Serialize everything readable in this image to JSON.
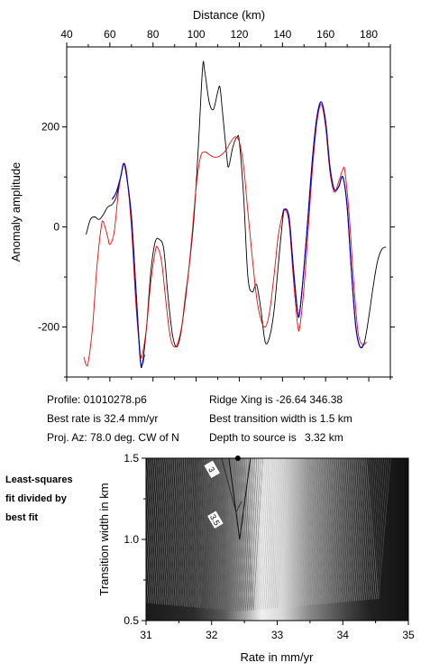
{
  "chart_data": [
    {
      "type": "line",
      "xlabel": "Distance (km)",
      "ylabel": "Anomaly amplitude",
      "xlim": [
        40,
        190
      ],
      "ylim": [
        -300,
        360
      ],
      "xticks": [
        40,
        60,
        80,
        100,
        120,
        140,
        160,
        180
      ],
      "yticks": [
        -200,
        0,
        200
      ],
      "grid": false,
      "series": [
        {
          "color": "#000000",
          "points": [
            [
              49,
              -15
            ],
            [
              51,
              15
            ],
            [
              53,
              20
            ],
            [
              55,
              15
            ],
            [
              57,
              25
            ],
            [
              59,
              40
            ],
            [
              61,
              45
            ],
            [
              63,
              60
            ],
            [
              65,
              100
            ],
            [
              66.5,
              127
            ],
            [
              68,
              95
            ],
            [
              70,
              20
            ],
            [
              72,
              -120
            ],
            [
              74,
              -260
            ],
            [
              75,
              -275
            ],
            [
              77,
              -200
            ],
            [
              79,
              -90
            ],
            [
              81,
              -30
            ],
            [
              83,
              -25
            ],
            [
              85,
              -45
            ],
            [
              87,
              -140
            ],
            [
              89,
              -215
            ],
            [
              91,
              -240
            ],
            [
              93,
              -210
            ],
            [
              95,
              -140
            ],
            [
              97,
              -70
            ],
            [
              99,
              20
            ],
            [
              101,
              160
            ],
            [
              103,
              320
            ],
            [
              104,
              310
            ],
            [
              106,
              250
            ],
            [
              108,
              235
            ],
            [
              110,
              270
            ],
            [
              111,
              280
            ],
            [
              112,
              240
            ],
            [
              114,
              150
            ],
            [
              115,
              120
            ],
            [
              117,
              160
            ],
            [
              119,
              180
            ],
            [
              120,
              170
            ],
            [
              122,
              60
            ],
            [
              124,
              -100
            ],
            [
              126,
              -130
            ],
            [
              128,
              -115
            ],
            [
              130,
              -165
            ],
            [
              132,
              -230
            ],
            [
              134,
              -220
            ],
            [
              136,
              -170
            ],
            [
              138,
              -80
            ],
            [
              140,
              10
            ],
            [
              141,
              35
            ],
            [
              143,
              20
            ],
            [
              145,
              -80
            ],
            [
              147,
              -170
            ],
            [
              148,
              -170
            ],
            [
              150,
              -80
            ],
            [
              152,
              30
            ],
            [
              154,
              140
            ],
            [
              156,
              220
            ],
            [
              158,
              250
            ],
            [
              160,
              210
            ],
            [
              162,
              120
            ],
            [
              164,
              75
            ],
            [
              166,
              80
            ],
            [
              168,
              100
            ],
            [
              170,
              40
            ],
            [
              172,
              -90
            ],
            [
              174,
              -200
            ],
            [
              176,
              -240
            ],
            [
              178,
              -230
            ],
            [
              180,
              -180
            ],
            [
              182,
              -120
            ],
            [
              184,
              -70
            ],
            [
              186,
              -45
            ],
            [
              188,
              -40
            ]
          ]
        },
        {
          "color": "#0000cc",
          "points": [
            [
              61,
              55
            ],
            [
              63,
              70
            ],
            [
              65,
              100
            ],
            [
              66.5,
              127
            ],
            [
              68,
              95
            ],
            [
              70,
              20
            ],
            [
              72,
              -120
            ],
            [
              74,
              -260
            ],
            [
              75,
              -275
            ],
            [
              76,
              -255
            ],
            [
              140,
              20
            ],
            [
              141,
              35
            ],
            [
              143,
              20
            ],
            [
              145,
              -80
            ],
            [
              147,
              -170
            ],
            [
              148,
              -170
            ],
            [
              150,
              -80
            ],
            [
              152,
              30
            ],
            [
              154,
              140
            ],
            [
              156,
              220
            ],
            [
              158,
              250
            ],
            [
              160,
              210
            ],
            [
              162,
              120
            ],
            [
              164,
              75
            ],
            [
              166,
              80
            ],
            [
              168,
              100
            ],
            [
              170,
              40
            ],
            [
              172,
              -90
            ],
            [
              174,
              -200
            ],
            [
              176,
              -240
            ],
            [
              178,
              -232
            ]
          ]
        },
        {
          "color": "#ff0000",
          "points": [
            [
              48,
              -260
            ],
            [
              49,
              -275
            ],
            [
              50,
              -270
            ],
            [
              52,
              -200
            ],
            [
              54,
              -80
            ],
            [
              56,
              0
            ],
            [
              57,
              10
            ],
            [
              59,
              -20
            ],
            [
              60,
              -35
            ],
            [
              62,
              -10
            ],
            [
              64,
              70
            ],
            [
              66,
              120
            ],
            [
              67,
              125
            ],
            [
              68,
              100
            ],
            [
              70,
              0
            ],
            [
              72,
              -150
            ],
            [
              74,
              -250
            ],
            [
              75,
              -255
            ],
            [
              77,
              -200
            ],
            [
              79,
              -110
            ],
            [
              81,
              -50
            ],
            [
              82,
              -40
            ],
            [
              84,
              -70
            ],
            [
              86,
              -150
            ],
            [
              88,
              -220
            ],
            [
              90,
              -240
            ],
            [
              92,
              -225
            ],
            [
              94,
              -180
            ],
            [
              96,
              -110
            ],
            [
              98,
              -20
            ],
            [
              100,
              80
            ],
            [
              102,
              140
            ],
            [
              104,
              150
            ],
            [
              106,
              145
            ],
            [
              108,
              140
            ],
            [
              110,
              140
            ],
            [
              112,
              145
            ],
            [
              114,
              155
            ],
            [
              116,
              170
            ],
            [
              118,
              180
            ],
            [
              120,
              170
            ],
            [
              122,
              120
            ],
            [
              124,
              30
            ],
            [
              126,
              -60
            ],
            [
              128,
              -140
            ],
            [
              130,
              -185
            ],
            [
              132,
              -200
            ],
            [
              134,
              -170
            ],
            [
              136,
              -100
            ],
            [
              138,
              -20
            ],
            [
              140,
              25
            ],
            [
              141,
              35
            ],
            [
              143,
              10
            ],
            [
              145,
              -100
            ],
            [
              147,
              -195
            ],
            [
              148,
              -200
            ],
            [
              150,
              -120
            ],
            [
              152,
              0
            ],
            [
              154,
              120
            ],
            [
              156,
              210
            ],
            [
              158,
              245
            ],
            [
              160,
              200
            ],
            [
              162,
              110
            ],
            [
              164,
              70
            ],
            [
              166,
              90
            ],
            [
              168,
              115
            ],
            [
              169,
              110
            ],
            [
              171,
              20
            ],
            [
              173,
              -110
            ],
            [
              175,
              -210
            ],
            [
              177,
              -235
            ],
            [
              179,
              -230
            ]
          ]
        }
      ]
    },
    {
      "type": "heatmap",
      "xlabel": "Rate in mm/yr",
      "ylabel": "Transition width in km",
      "xlim": [
        31,
        35
      ],
      "ylim": [
        0.5,
        1.5
      ],
      "xticks": [
        31,
        32,
        33,
        34,
        35
      ],
      "yticks": [
        0.5,
        1.0,
        1.5
      ],
      "best_fit_marker": [
        32.4,
        1.5
      ],
      "contour_labels": [
        {
          "text": "3",
          "x": 32.0,
          "y": 1.43
        },
        {
          "text": "3.5",
          "x": 32.05,
          "y": 1.12
        }
      ]
    }
  ],
  "info": {
    "profile": "Profile: 01010278.p6",
    "ridge_xing": "Ridge Xing is -26.64 346.38",
    "best_rate": "Best rate is 32.4 mm/yr",
    "best_width": "Best transition width is 1.5 km",
    "proj_az": "Proj. Az: 78.0 deg. CW of N",
    "depth_label": "Depth to source is",
    "depth_value": "3.32 km"
  },
  "side_note": [
    "Least-squares",
    "fit divided by",
    "best fit"
  ]
}
